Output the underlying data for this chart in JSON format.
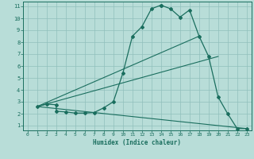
{
  "xlabel": "Humidex (Indice chaleur)",
  "bg_color": "#b8ddd8",
  "grid_color": "#90c0bc",
  "line_color": "#1a6e5e",
  "xlim": [
    -0.5,
    23.5
  ],
  "ylim": [
    0.6,
    11.4
  ],
  "xticks": [
    0,
    1,
    2,
    3,
    4,
    5,
    6,
    7,
    8,
    9,
    10,
    11,
    12,
    13,
    14,
    15,
    16,
    17,
    18,
    19,
    20,
    21,
    22,
    23
  ],
  "yticks": [
    1,
    2,
    3,
    4,
    5,
    6,
    7,
    8,
    9,
    10,
    11
  ],
  "series1_x": [
    1,
    2,
    3,
    3,
    4,
    5,
    6,
    7,
    8,
    9,
    10,
    11,
    12,
    13,
    14,
    14,
    15,
    16,
    17,
    18,
    19,
    20,
    21,
    22,
    23
  ],
  "series1_y": [
    2.6,
    2.8,
    2.75,
    2.2,
    2.15,
    2.05,
    2.05,
    2.1,
    2.5,
    3.0,
    5.4,
    8.5,
    9.3,
    10.8,
    11.1,
    11.1,
    10.8,
    10.1,
    10.7,
    8.5,
    6.8,
    3.4,
    2.0,
    0.75,
    0.75
  ],
  "series2_x": [
    1,
    18
  ],
  "series2_y": [
    2.6,
    8.5
  ],
  "series3_x": [
    1,
    20
  ],
  "series3_y": [
    2.6,
    6.8
  ],
  "series4_x": [
    1,
    23
  ],
  "series4_y": [
    2.6,
    0.75
  ]
}
